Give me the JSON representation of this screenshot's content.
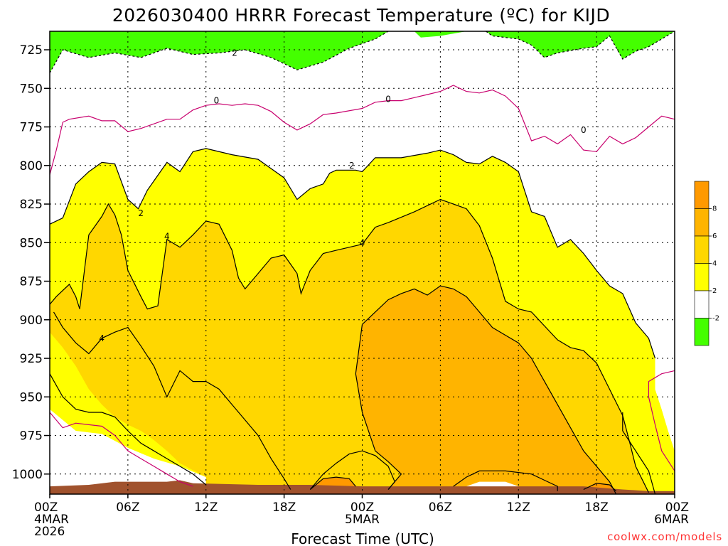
{
  "chart_data": {
    "type": "contour",
    "title": "2026030400 HRRR Forecast Temperature (ºC) for KIJD",
    "xlabel": "Forecast Time (UTC)",
    "ylabel": "",
    "credit": "coolwx.com/models",
    "y_ticks": [
      "725",
      "750",
      "775",
      "800",
      "825",
      "850",
      "875",
      "900",
      "925",
      "950",
      "975",
      "1000"
    ],
    "y_range": [
      1013,
      713
    ],
    "y_scale": "linear (pressure, hPa, inverted)",
    "x_ticks": [
      {
        "hour": 0,
        "lines": [
          "00Z",
          "4MAR",
          "2026"
        ]
      },
      {
        "hour": 6,
        "lines": [
          "06Z"
        ]
      },
      {
        "hour": 12,
        "lines": [
          "12Z"
        ]
      },
      {
        "hour": 18,
        "lines": [
          "18Z"
        ]
      },
      {
        "hour": 24,
        "lines": [
          "00Z",
          "5MAR"
        ]
      },
      {
        "hour": 30,
        "lines": [
          "06Z"
        ]
      },
      {
        "hour": 36,
        "lines": [
          "12Z"
        ]
      },
      {
        "hour": 42,
        "lines": [
          "18Z"
        ]
      },
      {
        "hour": 48,
        "lines": [
          "00Z",
          "6MAR"
        ]
      }
    ],
    "x_range": [
      0,
      48
    ],
    "grid": true,
    "colorbar": {
      "placement": "right",
      "levels": [
        "-2",
        "2",
        "4",
        "6",
        "8"
      ],
      "colors": [
        "#44ff00",
        "#ffffff",
        "#ffff00",
        "#ffd700",
        "#ffb400",
        "#ff9900"
      ]
    },
    "contour_labels": [
      {
        "text": "2",
        "hour": 14.2,
        "p": 727
      },
      {
        "text": "0",
        "hour": 12.8,
        "p": 758
      },
      {
        "text": "0",
        "hour": 26.0,
        "p": 757
      },
      {
        "text": "0",
        "hour": 41.0,
        "p": 777
      },
      {
        "text": "2",
        "hour": 23.2,
        "p": 800
      },
      {
        "text": "2",
        "hour": 7.0,
        "p": 831
      },
      {
        "text": "4",
        "hour": 9.0,
        "p": 846
      },
      {
        "text": "4",
        "hour": 24.0,
        "p": 850
      },
      {
        "text": "4",
        "hour": 4.0,
        "p": 912
      }
    ],
    "regions": [
      {
        "fill": "#44ff00",
        "level": "< -2 (above 2 ° contour aloft)",
        "points": [
          [
            0,
            713
          ],
          [
            0,
            740
          ],
          [
            1,
            725
          ],
          [
            3,
            730
          ],
          [
            5,
            727
          ],
          [
            7,
            730
          ],
          [
            9,
            724
          ],
          [
            11,
            728
          ],
          [
            13,
            727
          ],
          [
            15,
            725
          ],
          [
            17,
            730
          ],
          [
            19,
            738
          ],
          [
            21,
            733
          ],
          [
            23,
            724
          ],
          [
            25,
            718
          ],
          [
            26,
            713
          ]
        ]
      },
      {
        "fill": "#44ff00",
        "level": "< -2",
        "points": [
          [
            28,
            713
          ],
          [
            28.5,
            717
          ],
          [
            30,
            716
          ],
          [
            32,
            713
          ]
        ]
      },
      {
        "fill": "#44ff00",
        "level": "< -2",
        "points": [
          [
            33.5,
            713
          ],
          [
            34,
            716
          ],
          [
            36,
            718
          ],
          [
            37,
            722
          ],
          [
            38,
            730
          ],
          [
            39,
            727
          ],
          [
            41,
            724
          ],
          [
            42,
            723
          ],
          [
            43,
            716
          ],
          [
            44,
            731
          ],
          [
            45,
            726
          ],
          [
            46,
            723
          ],
          [
            47,
            718
          ],
          [
            48,
            713
          ]
        ]
      }
    ]
  }
}
